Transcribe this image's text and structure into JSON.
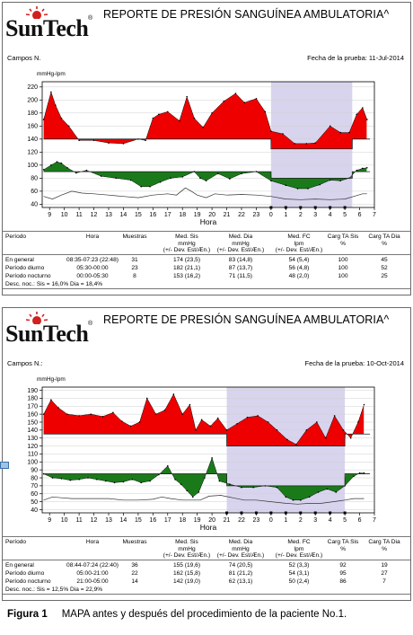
{
  "reports": [
    {
      "title": "REPORTE DE PRESIÓN SANGUÍNEA AMBULATORIA^",
      "logo_text": "SunTech",
      "logo_reg": "®",
      "patient": "Campos N.",
      "date_label": "Fecha de la prueba: 11-Jul-2014",
      "y_unit": "mmHg-lpm",
      "x_axis_label": "Hora",
      "table": {
        "headers": [
          [
            "Período"
          ],
          [
            "Hora"
          ],
          [
            "Muestras"
          ],
          [
            "Med. Sis",
            "mmHg",
            "(+/- Dev. Est/Æn.)"
          ],
          [
            "Med. Dia",
            "mmHg",
            "(+/- Dev. Est/Æn.)"
          ],
          [
            "Med. FC",
            "lpm",
            "(+/- Dev. Est/Æn.)"
          ],
          [
            "Carg TA Sis",
            "%"
          ],
          [
            "Carg TA Dia",
            "%"
          ]
        ],
        "rows": [
          [
            "En general",
            "08:35-07:23 (22:48)",
            "31",
            "174 (23,5)",
            "83 (14,8)",
            "54 (5,4)",
            "100",
            "45"
          ],
          [
            "Período diurno",
            "05:30-00:00",
            "23",
            "182 (21,1)",
            "87 (13,7)",
            "56 (4,8)",
            "100",
            "52"
          ],
          [
            "Período nocturno",
            "00:00-05:30",
            "8",
            "153 (16,2)",
            "71 (11,5)",
            "48 (2,0)",
            "100",
            "25"
          ]
        ],
        "footer": "Desc. noc.: Sis = 16,0% Dia = 18,4%"
      }
    },
    {
      "title": "REPORTE DE PRESIÓN SANGUÍNEA AMBULATORIA^",
      "logo_text": "SunTech",
      "logo_reg": "®",
      "patient": "Campos N.:",
      "date_label": "Fecha de la prueba: 10-Oct-2014",
      "y_unit": "mmHg-lpm",
      "x_axis_label": "Hora",
      "table": {
        "headers": [
          [
            "Período"
          ],
          [
            "Hora"
          ],
          [
            "Muestras"
          ],
          [
            "Med. Sis",
            "mmHg",
            "(+/- Dev. Est/Æn.)"
          ],
          [
            "Med. Dia",
            "mmHg",
            "(+/- Dev. Est/Æn.)"
          ],
          [
            "Med. FC",
            "lpm",
            "(+/- Dev. Est/Æn.)"
          ],
          [
            "Carg TA Sis",
            "%"
          ],
          [
            "Carg TA Dia",
            "%"
          ]
        ],
        "rows": [
          [
            "En general",
            "08:44-07:24 (22:40)",
            "36",
            "155 (19,6)",
            "74 (20,5)",
            "52 (3,3)",
            "92",
            "19"
          ],
          [
            "Período diurno",
            "05:00-21:00",
            "22",
            "162 (15,8)",
            "81 (21,2)",
            "54 (3,1)",
            "95",
            "27"
          ],
          [
            "Período nocturno",
            "21:00-05:00",
            "14",
            "142 (19,0)",
            "62 (13,1)",
            "50 (2,4)",
            "86",
            "7"
          ]
        ],
        "footer": "Desc. noc.: Sis = 12,5% Dia = 22,9%"
      }
    }
  ],
  "caption": {
    "figure": "Figura 1",
    "text": "MAPA antes y después del procedimiento de la paciente No.1."
  },
  "colors": {
    "systolic_fill": "#ee0000",
    "diastolic_fill": "#1a7a1a",
    "heart_rate_line": "#333333",
    "night_band": "#d8d4ee",
    "threshold_line": "#222222"
  },
  "chart_data": [
    {
      "type": "area",
      "y_ticks": [
        40,
        60,
        80,
        100,
        120,
        140,
        160,
        180,
        200,
        220
      ],
      "ylim": [
        35,
        228
      ],
      "x_ticks": [
        "9",
        "10",
        "11",
        "12",
        "13",
        "14",
        "15",
        "16",
        "17",
        "18",
        "19",
        "20",
        "21",
        "22",
        "23",
        "0",
        "1",
        "2",
        "3",
        "4",
        "5",
        "6",
        "7"
      ],
      "night_band": [
        "0",
        "5:30"
      ],
      "series": [
        {
          "name": "Sis",
          "threshold_day": 140,
          "threshold_night": 125,
          "x": [
            8.6,
            9.1,
            9.4,
            9.8,
            10.3,
            11.0,
            12.0,
            13.0,
            14.0,
            15.0,
            15.5,
            16.0,
            16.4,
            17.0,
            17.8,
            18.3,
            18.8,
            19.4,
            20.0,
            20.8,
            21.6,
            22.2,
            23.0,
            23.6,
            24.0,
            24.8,
            25.6,
            26.4,
            27.0,
            28.0,
            28.7,
            29.3,
            29.8,
            30.2,
            30.5
          ],
          "values": [
            170,
            212,
            192,
            172,
            160,
            138,
            138,
            134,
            133,
            140,
            138,
            172,
            178,
            182,
            168,
            205,
            172,
            158,
            180,
            198,
            210,
            196,
            202,
            182,
            152,
            148,
            133,
            133,
            134,
            160,
            150,
            150,
            178,
            188,
            170
          ]
        },
        {
          "name": "Dia",
          "threshold_day": 90,
          "threshold_night": 80,
          "x": [
            8.6,
            9.1,
            9.5,
            9.8,
            10.2,
            10.8,
            11.5,
            12.5,
            13.5,
            14.5,
            15.2,
            15.8,
            16.5,
            17.2,
            18.0,
            18.8,
            19.2,
            19.6,
            20.4,
            21.2,
            22.0,
            23.0,
            24.0,
            25.0,
            25.8,
            26.5,
            27.3,
            28.0,
            28.7,
            29.3,
            29.8,
            30.2,
            30.5
          ],
          "values": [
            93,
            100,
            105,
            103,
            96,
            88,
            92,
            83,
            80,
            77,
            67,
            67,
            74,
            80,
            82,
            90,
            80,
            76,
            87,
            79,
            87,
            90,
            76,
            69,
            64,
            64,
            70,
            77,
            76,
            80,
            92,
            95,
            96
          ]
        },
        {
          "name": "FC",
          "x": [
            8.6,
            9.2,
            9.8,
            10.5,
            11.2,
            12.0,
            13.0,
            14.0,
            15.0,
            16.0,
            17.0,
            17.6,
            18.2,
            18.6,
            19.0,
            19.6,
            20.2,
            21.0,
            22.0,
            23.0,
            24.0,
            25.0,
            26.0,
            27.0,
            28.0,
            29.0,
            29.6,
            30.2,
            30.5
          ],
          "values": [
            52,
            48,
            54,
            60,
            57,
            56,
            54,
            52,
            50,
            54,
            56,
            54,
            65,
            60,
            54,
            50,
            56,
            54,
            55,
            54,
            52,
            48,
            47,
            48,
            47,
            48,
            52,
            56,
            56
          ]
        }
      ]
    },
    {
      "type": "area",
      "y_ticks": [
        40,
        50,
        60,
        70,
        80,
        90,
        100,
        110,
        120,
        130,
        140,
        150,
        160,
        170,
        180,
        190
      ],
      "ylim": [
        36,
        194
      ],
      "x_ticks": [
        "9",
        "10",
        "11",
        "12",
        "13",
        "14",
        "15",
        "16",
        "17",
        "18",
        "19",
        "20",
        "21",
        "22",
        "23",
        "0",
        "1",
        "2",
        "3",
        "4",
        "5",
        "6",
        "7"
      ],
      "night_band": [
        "21",
        "5"
      ],
      "series": [
        {
          "name": "Sis",
          "threshold_day": 135,
          "threshold_night": 120,
          "x": [
            8.6,
            9.1,
            9.6,
            10.2,
            11.0,
            11.8,
            12.6,
            13.3,
            13.9,
            14.5,
            15.1,
            15.6,
            16.2,
            16.8,
            17.4,
            18.0,
            18.5,
            18.9,
            19.3,
            19.9,
            20.4,
            21.0,
            21.7,
            22.4,
            23.1,
            23.8,
            24.4,
            25.1,
            25.7,
            26.4,
            27.1,
            27.7,
            28.3,
            28.9,
            29.4,
            29.9,
            30.3
          ],
          "values": [
            160,
            178,
            168,
            160,
            158,
            160,
            157,
            162,
            151,
            145,
            150,
            180,
            160,
            165,
            185,
            160,
            172,
            140,
            153,
            145,
            155,
            140,
            148,
            156,
            158,
            150,
            140,
            128,
            122,
            140,
            150,
            130,
            158,
            140,
            130,
            150,
            172
          ]
        },
        {
          "name": "Dia",
          "threshold_day": 85,
          "threshold_night": 70,
          "x": [
            8.6,
            9.2,
            9.8,
            10.4,
            11.0,
            11.6,
            12.2,
            12.8,
            13.4,
            14.0,
            14.6,
            15.2,
            15.8,
            16.4,
            17.0,
            17.5,
            17.9,
            18.3,
            18.7,
            19.1,
            19.5,
            20.0,
            20.5,
            21.2,
            22.0,
            22.8,
            23.6,
            24.4,
            25.0,
            25.5,
            26.0,
            26.6,
            27.2,
            27.8,
            28.4,
            29.0,
            29.6,
            30.0,
            30.3
          ],
          "values": [
            85,
            80,
            79,
            77,
            78,
            80,
            78,
            76,
            74,
            75,
            78,
            74,
            76,
            84,
            95,
            78,
            72,
            64,
            56,
            62,
            80,
            105,
            76,
            72,
            68,
            68,
            70,
            68,
            56,
            52,
            52,
            56,
            62,
            66,
            62,
            70,
            82,
            86,
            86
          ]
        },
        {
          "name": "FC",
          "x": [
            8.6,
            9.2,
            9.8,
            10.5,
            11.2,
            12.0,
            13.0,
            14.0,
            15.0,
            16.0,
            16.6,
            17.2,
            18.0,
            18.6,
            19.2,
            19.8,
            20.6,
            21.4,
            22.2,
            23.0,
            24.0,
            25.0,
            25.8,
            26.6,
            27.4,
            28.2,
            29.0,
            29.6,
            30.3
          ],
          "values": [
            52,
            56,
            55,
            54,
            54,
            54,
            54,
            52,
            52,
            53,
            56,
            54,
            52,
            52,
            52,
            57,
            58,
            55,
            52,
            52,
            50,
            48,
            47,
            48,
            48,
            50,
            52,
            54,
            54
          ]
        }
      ]
    }
  ]
}
